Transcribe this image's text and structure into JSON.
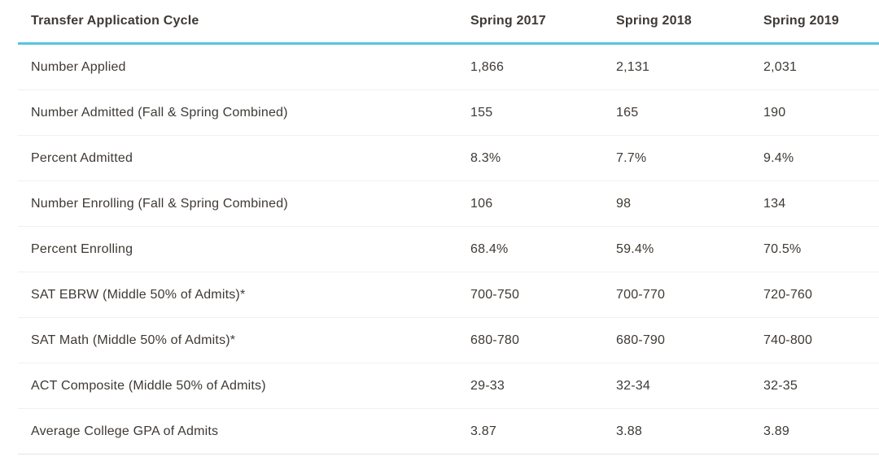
{
  "chart_data": {
    "type": "table",
    "title": "Transfer Application Cycle",
    "columns": [
      "Spring 2017",
      "Spring 2018",
      "Spring 2019"
    ],
    "rows": [
      {
        "label": "Number Applied",
        "values": [
          "1,866",
          "2,131",
          "2,031"
        ]
      },
      {
        "label": "Number Admitted (Fall & Spring Combined)",
        "values": [
          "155",
          "165",
          "190"
        ]
      },
      {
        "label": "Percent Admitted",
        "values": [
          "8.3%",
          "7.7%",
          "9.4%"
        ]
      },
      {
        "label": "Number Enrolling (Fall & Spring Combined)",
        "values": [
          "106",
          "98",
          "134"
        ]
      },
      {
        "label": "Percent Enrolling",
        "values": [
          "68.4%",
          "59.4%",
          "70.5%"
        ]
      },
      {
        "label": "SAT EBRW (Middle 50% of Admits)*",
        "values": [
          "700-750",
          "700-770",
          "720-760"
        ]
      },
      {
        "label": "SAT Math (Middle 50% of Admits)*",
        "values": [
          "680-780",
          "680-790",
          "740-800"
        ]
      },
      {
        "label": "ACT Composite (Middle 50% of Admits)",
        "values": [
          "29-33",
          "32-34",
          "32-35"
        ]
      },
      {
        "label": "Average College GPA of Admits",
        "values": [
          "3.87",
          "3.88",
          "3.89"
        ]
      }
    ],
    "layout": {
      "header_rule": "accent",
      "row_dividers": true,
      "value_alignment": "left"
    }
  },
  "colors": {
    "accent": "#58C5E1",
    "text": "#3E3934",
    "divider": "#F0F0F0",
    "bottom_divider": "#E4E4E4",
    "background": "#FFFFFF"
  }
}
